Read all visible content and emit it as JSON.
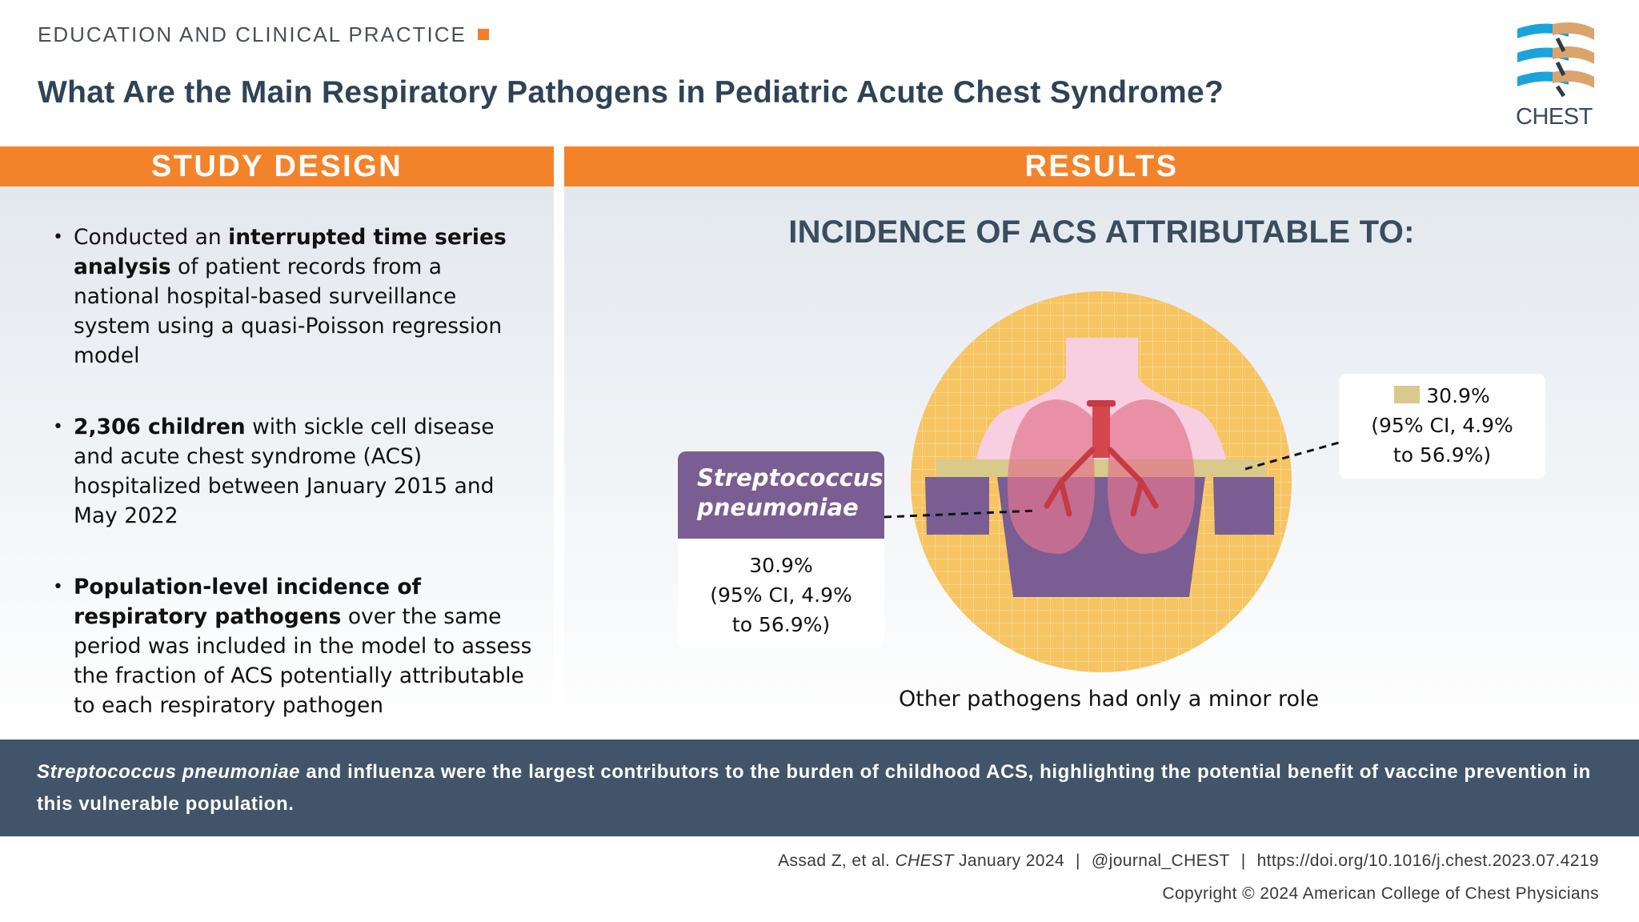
{
  "header": {
    "section_label": "EDUCATION AND CLINICAL PRACTICE",
    "title": "What Are the Main Respiratory Pathogens in Pediatric Acute Chest Syndrome?",
    "logo_text": "CHEST"
  },
  "study_design": {
    "heading": "STUDY DESIGN",
    "bullets": [
      {
        "pre": "Conducted an ",
        "bold": "interrupted time series analysis",
        "post": " of patient records from a national hospital-based surveillance system using a quasi-Poisson regression model"
      },
      {
        "pre": "",
        "bold": "2,306 children",
        "post": " with sickle cell disease and acute chest syndrome (ACS) hospitalized between January 2015 and May 2022"
      },
      {
        "pre": "",
        "bold": "Population-level incidence of respiratory pathogens",
        "post": " over the same period was included in the model to assess the fraction of ACS potentially attributable to each respiratory pathogen"
      }
    ]
  },
  "results": {
    "heading": "RESULTS",
    "subheading": "INCIDENCE OF ACS ATTRIBUTABLE TO:",
    "left_callout": {
      "pathogen": "Streptococcus pneumoniae",
      "value": "30.9%",
      "ci": "(95% CI, 4.9%",
      "ci_end": "to 56.9%)"
    },
    "right_callout": {
      "value": "30.9%",
      "ci": "(95% CI, 4.9%",
      "ci_end": "to 56.9%)"
    },
    "caption": "Other pathogens had only a minor role",
    "colors": {
      "pneumo": "#7a5e93",
      "band": "#d9c98a",
      "circle": "#f6c462"
    }
  },
  "conclusion": {
    "italic_part": "Streptococcus pneumoniae",
    "rest": " and influenza were the largest contributors to the burden of childhood ACS, highlighting the potential benefit of vaccine prevention in this vulnerable population."
  },
  "footer": {
    "citation_authors": "Assad Z, et al. ",
    "citation_journal": "CHEST",
    "citation_date": " January 2024",
    "twitter": "@journal_CHEST",
    "doi": "https://doi.org/10.1016/j.chest.2023.07.4219",
    "copyright": "Copyright © 2024 American College of Chest Physicians"
  }
}
